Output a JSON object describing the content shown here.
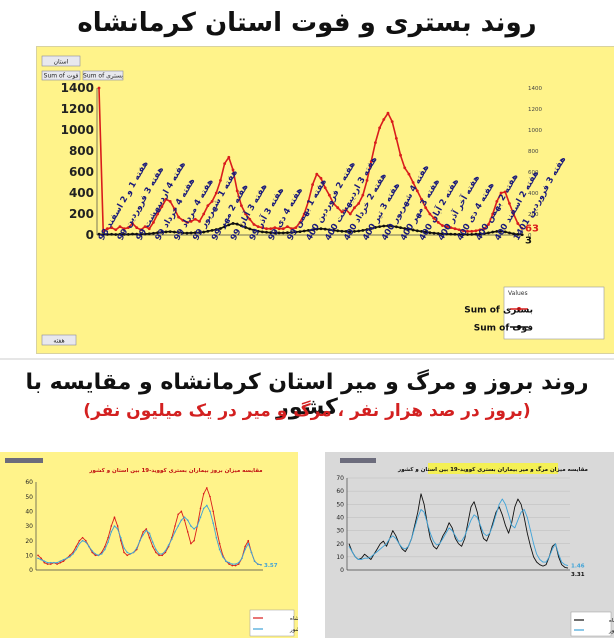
{
  "titles": {
    "main": "روند بستری و فوت استان کرمانشاه",
    "second": "روند بروز و مرگ و میر استان کرمانشاه و مقایسه با کشور",
    "second_note": "(بروز در صد هزار نفر ، مرگ و میر در یک میلیون نفر)"
  },
  "colors": {
    "red_series": "#d91c1c",
    "black_series": "#111111",
    "blue_series": "#3fa3d8",
    "panel_yellow": "#fff38a",
    "panel_gray": "#d9d9d9"
  },
  "chart_data": [
    {
      "type": "line",
      "title": "روند بستری و فوت استان کرمانشاه",
      "filter_button": "استان",
      "left_axis_button": "Sum of فوت",
      "right_axis_button": "Sum of بستری",
      "footer_button": "هفته",
      "legend_title": "Values",
      "ylim_left": [
        0,
        1400
      ],
      "ylim_right": [
        0,
        1400
      ],
      "yticks_left": [
        0,
        200,
        400,
        600,
        800,
        1000,
        1200,
        1400
      ],
      "yticks_right": [
        0,
        200,
        400,
        600,
        800,
        1000,
        1200,
        1400
      ],
      "x_tick_labels": [
        "هفته 1 و 2 اسفند 98",
        "هفته 3 فروردین 99",
        "هفته 4 اردیبهشت 99",
        "هفته 4 خرداد 99",
        "هفته 4 مرداد 99",
        "هفته 1 شهریور 99",
        "هفته 2 مهر 99",
        "هفته 3 آبان 99",
        "هفته 3 آذر 99",
        "هفته 4 دی 99",
        "هفته 1 بهمن 99",
        "هفته 2 فروردین 400",
        "هفته 3 اردیبهشت 400",
        "هفته 2 خرداد 400",
        "هفته 3 تیر 400",
        "هفته 4 شهریور 400",
        "هفته 3 مهر 400",
        "هفته 2 آبان 400",
        "هفته آخر آذر 400",
        "هفته 4 دی 400",
        "هفته 2 بهمن 400",
        "هفته 2 اسفند 400",
        "هفته 3 فروردین 1401"
      ],
      "end_labels": [
        "63",
        "3"
      ],
      "series": [
        {
          "name": "Sum of بستری",
          "color": "#d91c1c",
          "values": [
            1400,
            40,
            60,
            70,
            50,
            80,
            60,
            70,
            110,
            70,
            50,
            80,
            60,
            120,
            200,
            270,
            340,
            320,
            250,
            170,
            140,
            120,
            130,
            150,
            130,
            200,
            280,
            320,
            400,
            520,
            680,
            740,
            620,
            420,
            280,
            200,
            150,
            100,
            80,
            70,
            60,
            60,
            70,
            60,
            60,
            80,
            60,
            70,
            120,
            200,
            320,
            480,
            580,
            540,
            450,
            380,
            300,
            260,
            220,
            240,
            200,
            260,
            300,
            380,
            520,
            700,
            880,
            1020,
            1100,
            1160,
            1080,
            920,
            760,
            640,
            580,
            500,
            420,
            340,
            260,
            200,
            160,
            120,
            90,
            80,
            70,
            60,
            50,
            40,
            35,
            35,
            40,
            50,
            60,
            100,
            200,
            320,
            400,
            410,
            300,
            200,
            110,
            63
          ]
        },
        {
          "name": "Sum of فوت",
          "color": "#111111",
          "values": [
            8,
            4,
            6,
            7,
            5,
            7,
            6,
            6,
            9,
            8,
            7,
            10,
            12,
            16,
            22,
            26,
            30,
            32,
            28,
            24,
            20,
            18,
            20,
            22,
            24,
            28,
            36,
            44,
            52,
            62,
            80,
            96,
            110,
            104,
            88,
            72,
            58,
            46,
            36,
            30,
            26,
            22,
            20,
            20,
            20,
            22,
            24,
            28,
            32,
            38,
            44,
            50,
            56,
            60,
            56,
            50,
            44,
            40,
            36,
            34,
            32,
            34,
            38,
            44,
            52,
            62,
            72,
            80,
            86,
            88,
            84,
            78,
            70,
            62,
            56,
            48,
            40,
            34,
            28,
            22,
            18,
            14,
            12,
            10,
            8,
            7,
            6,
            5,
            5,
            6,
            8,
            10,
            14,
            20,
            28,
            34,
            36,
            30,
            20,
            12,
            6,
            3
          ]
        }
      ]
    },
    {
      "type": "line",
      "title": "مقایسه میزان بروز بیماران بستری کووید-19 بین استان و کشور",
      "ylim": [
        0,
        60
      ],
      "yticks": [
        0,
        10,
        20,
        30,
        40,
        50,
        60
      ],
      "end_labels": [
        "3.57"
      ],
      "series": [
        {
          "name": "کرمانشاه",
          "color": "#d91c1c",
          "values": [
            10,
            8,
            5,
            4,
            4,
            5,
            4,
            5,
            6,
            8,
            10,
            12,
            16,
            20,
            22,
            20,
            16,
            12,
            10,
            10,
            12,
            16,
            22,
            30,
            36,
            30,
            20,
            12,
            10,
            11,
            12,
            14,
            20,
            26,
            28,
            22,
            16,
            12,
            10,
            10,
            12,
            16,
            22,
            30,
            38,
            40,
            34,
            26,
            18,
            20,
            30,
            42,
            52,
            56,
            50,
            40,
            28,
            18,
            10,
            6,
            4,
            3,
            3,
            4,
            8,
            16,
            20,
            12,
            6,
            4,
            3.57
          ]
        },
        {
          "name": "کل کشور",
          "color": "#3fa3d8",
          "values": [
            8,
            7,
            6,
            5,
            5,
            5,
            5,
            6,
            7,
            8,
            9,
            11,
            14,
            18,
            20,
            19,
            16,
            13,
            11,
            10,
            11,
            14,
            19,
            26,
            30,
            28,
            22,
            15,
            12,
            11,
            12,
            15,
            20,
            24,
            27,
            25,
            19,
            14,
            11,
            11,
            13,
            17,
            21,
            26,
            30,
            34,
            36,
            34,
            30,
            28,
            30,
            36,
            42,
            44,
            40,
            32,
            22,
            14,
            9,
            6,
            5,
            4,
            4,
            5,
            8,
            14,
            18,
            12,
            6,
            4,
            3.57
          ]
        }
      ]
    },
    {
      "type": "line",
      "title": "مقایسه میزان مرگ و میر بیماران بستری کووید-19 بین استان و کشور",
      "ylim": [
        0,
        70
      ],
      "yticks": [
        0,
        10,
        20,
        30,
        40,
        50,
        60,
        70
      ],
      "end_labels": [
        "3.31",
        "1.46"
      ],
      "series": [
        {
          "name": "کرمانشاه",
          "color": "#111111",
          "values": [
            20,
            14,
            10,
            8,
            9,
            12,
            10,
            8,
            12,
            16,
            20,
            22,
            18,
            24,
            30,
            26,
            20,
            16,
            14,
            18,
            24,
            34,
            44,
            58,
            50,
            36,
            24,
            18,
            16,
            20,
            26,
            30,
            36,
            32,
            24,
            20,
            18,
            24,
            36,
            48,
            52,
            44,
            32,
            24,
            22,
            28,
            36,
            44,
            48,
            42,
            34,
            28,
            36,
            48,
            54,
            50,
            40,
            28,
            18,
            10,
            6,
            4,
            3,
            4,
            10,
            18,
            20,
            10,
            4,
            2,
            1.46
          ]
        },
        {
          "name": "کل کشور",
          "color": "#3fa3d8",
          "values": [
            18,
            14,
            10,
            8,
            8,
            9,
            9,
            10,
            12,
            14,
            16,
            18,
            20,
            24,
            26,
            24,
            20,
            17,
            16,
            18,
            24,
            32,
            40,
            46,
            44,
            36,
            28,
            22,
            19,
            20,
            24,
            28,
            32,
            30,
            26,
            22,
            22,
            26,
            32,
            38,
            42,
            40,
            34,
            28,
            26,
            28,
            34,
            42,
            50,
            54,
            50,
            42,
            34,
            32,
            38,
            44,
            46,
            40,
            30,
            20,
            12,
            8,
            6,
            6,
            10,
            16,
            20,
            12,
            6,
            4,
            3.31
          ]
        }
      ]
    }
  ]
}
